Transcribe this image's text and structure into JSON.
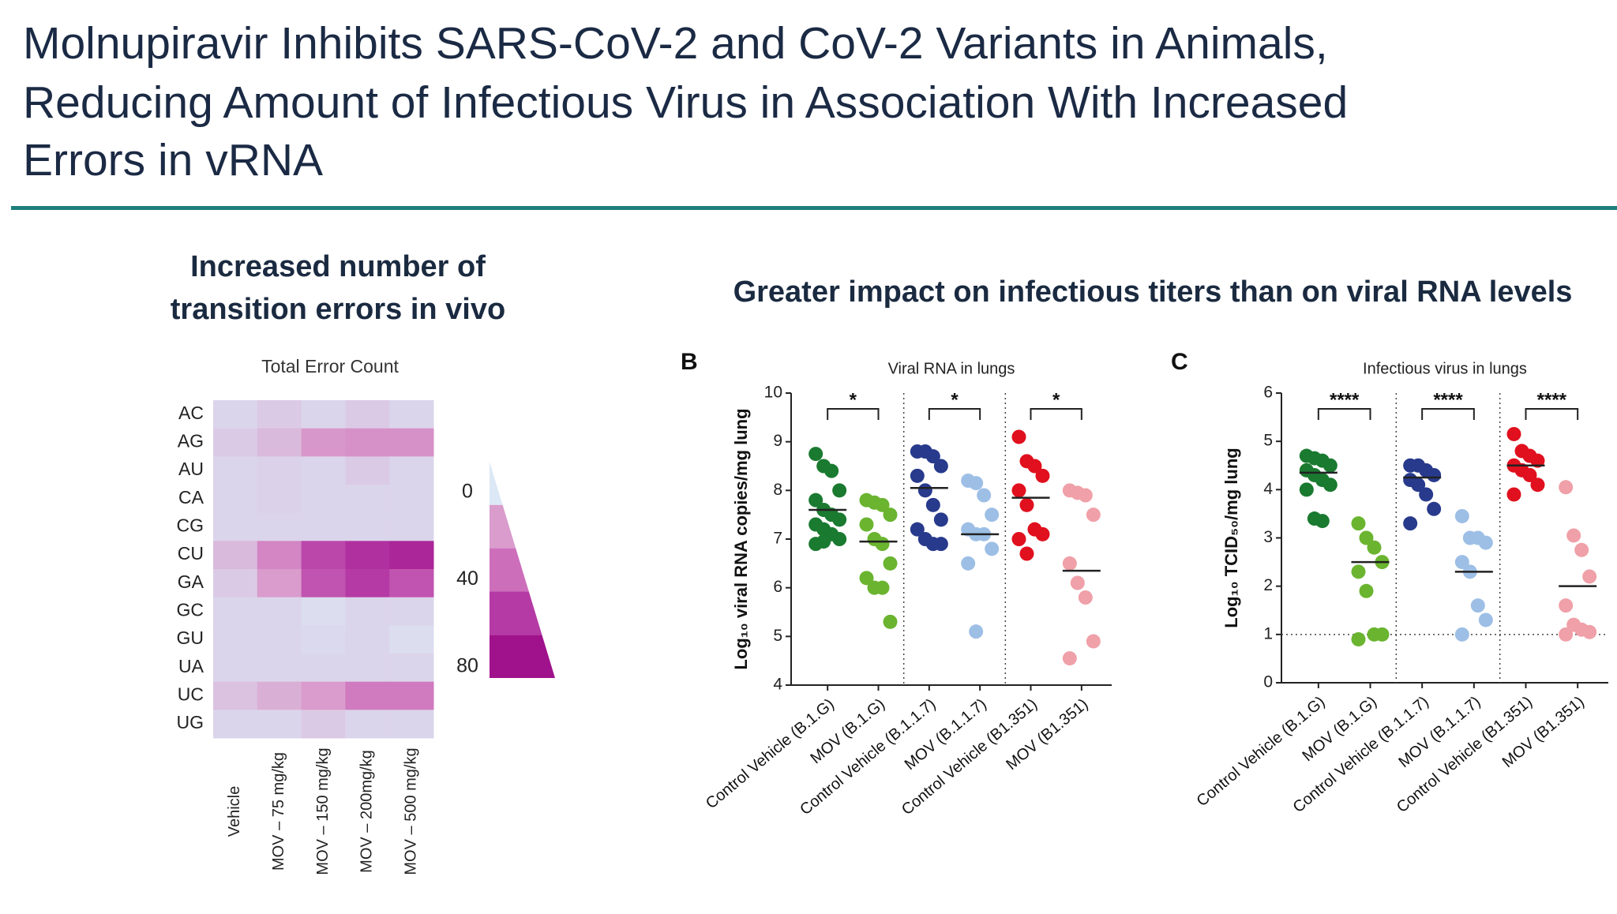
{
  "slide": {
    "title_lines": [
      "Molnupiravir Inhibits SARS-CoV-2 and CoV-2 Variants in Animals,",
      "Reducing Amount of Infectious Virus in Association With Increased",
      "Errors in vRNA"
    ],
    "left_heading_lines": [
      "Increased number of",
      "transition errors in vivo"
    ],
    "right_heading": "Greater impact on infectious titers than on viral RNA levels"
  },
  "chart_data": [
    {
      "type": "heatmap",
      "title": "Total Error Count",
      "rows": [
        "AC",
        "AG",
        "AU",
        "CA",
        "CG",
        "CU",
        "GA",
        "GC",
        "GU",
        "UA",
        "UC",
        "UG"
      ],
      "columns": [
        "Vehicle",
        "MOV – 75 mg/kg",
        "MOV – 150 mg/kg",
        "MOV – 200mg/kg",
        "MOV – 500 mg/kg"
      ],
      "values": [
        [
          5,
          8,
          5,
          8,
          5
        ],
        [
          8,
          12,
          22,
          25,
          25
        ],
        [
          5,
          6,
          5,
          8,
          5
        ],
        [
          5,
          6,
          5,
          5,
          5
        ],
        [
          5,
          5,
          5,
          5,
          5
        ],
        [
          12,
          30,
          55,
          65,
          70
        ],
        [
          8,
          20,
          50,
          60,
          50
        ],
        [
          5,
          5,
          3,
          5,
          5
        ],
        [
          5,
          5,
          4,
          5,
          3
        ],
        [
          5,
          5,
          5,
          5,
          5
        ],
        [
          10,
          15,
          20,
          35,
          35
        ],
        [
          5,
          5,
          8,
          5,
          5
        ]
      ],
      "colorscale": [
        "#dce8f5",
        "#d99ccc",
        "#cd6ebb",
        "#b53aa5",
        "#a0128c"
      ],
      "clim": [
        0,
        80
      ],
      "cticks": [
        0,
        40,
        80
      ]
    },
    {
      "type": "strip",
      "panel": "B",
      "title": "Viral RNA in lungs",
      "ylabel": "Log₁₀ viral RNA copies/mg lung",
      "categories": [
        "Control Vehicle (B.1.G)",
        "MOV (B.1.G)",
        "Control Vehicle (B.1.1.7)",
        "MOV (B.1.1.7)",
        "Control Vehicle (B1.351)",
        "MOV (B1.351)"
      ],
      "colors": [
        "#1a7a30",
        "#6ab42f",
        "#283a8c",
        "#9dbfe6",
        "#e0101e",
        "#f0a0a8"
      ],
      "values": [
        [
          8.75,
          8.5,
          8.4,
          8.0,
          7.8,
          7.6,
          7.5,
          7.4,
          7.3,
          7.2,
          7.1,
          7.0,
          6.9,
          6.95
        ],
        [
          7.8,
          7.75,
          7.7,
          7.5,
          7.3,
          7.0,
          6.9,
          6.5,
          6.2,
          6.0,
          6.0,
          5.3
        ],
        [
          8.8,
          8.8,
          8.7,
          8.5,
          8.3,
          8.0,
          7.7,
          7.4,
          7.2,
          7.0,
          6.9,
          6.9
        ],
        [
          8.2,
          8.15,
          7.9,
          7.5,
          7.2,
          7.1,
          7.1,
          6.8,
          6.5,
          5.1
        ],
        [
          9.1,
          8.6,
          8.5,
          8.3,
          8.0,
          7.7,
          7.2,
          7.1,
          7.0,
          6.7
        ],
        [
          8.0,
          7.95,
          7.9,
          7.5,
          6.5,
          6.1,
          5.8,
          4.9,
          4.55
        ]
      ],
      "means": [
        7.6,
        6.95,
        8.05,
        7.1,
        7.85,
        6.35
      ],
      "significance": [
        "*",
        "*",
        "*"
      ],
      "ylim": [
        4,
        10
      ],
      "yticks": [
        4,
        5,
        6,
        7,
        8,
        9,
        10
      ]
    },
    {
      "type": "strip",
      "panel": "C",
      "title": "Infectious virus in lungs",
      "ylabel": "Log₁₀ TCID₅₀/mg lung",
      "categories": [
        "Control Vehicle (B.1.G)",
        "MOV (B.1.G)",
        "Control Vehicle (B.1.1.7)",
        "MOV (B.1.1.7)",
        "Control Vehicle (B1.351)",
        "MOV (B1.351)"
      ],
      "colors": [
        "#1a7a30",
        "#6ab42f",
        "#283a8c",
        "#9dbfe6",
        "#e0101e",
        "#f0a0a8"
      ],
      "values": [
        [
          4.7,
          4.65,
          4.6,
          4.5,
          4.4,
          4.3,
          4.2,
          4.1,
          4.0,
          3.4,
          3.35
        ],
        [
          3.3,
          3.0,
          2.8,
          2.5,
          2.3,
          1.9,
          1.0,
          1.0,
          0.9
        ],
        [
          4.5,
          4.5,
          4.4,
          4.3,
          4.2,
          4.1,
          3.9,
          3.6,
          3.3
        ],
        [
          3.45,
          3.0,
          3.0,
          2.9,
          2.5,
          2.3,
          1.6,
          1.3,
          1.0
        ],
        [
          5.15,
          4.8,
          4.7,
          4.6,
          4.5,
          4.4,
          4.3,
          4.1,
          3.9
        ],
        [
          4.05,
          3.05,
          2.75,
          2.2,
          1.6,
          1.2,
          1.1,
          1.05,
          1.0
        ]
      ],
      "means": [
        4.35,
        2.5,
        4.25,
        2.3,
        4.5,
        2.0
      ],
      "significance": [
        "****",
        "****",
        "****"
      ],
      "reference_line": 1,
      "ylim": [
        0,
        6
      ],
      "yticks": [
        0,
        1,
        2,
        3,
        4,
        5,
        6
      ]
    }
  ]
}
